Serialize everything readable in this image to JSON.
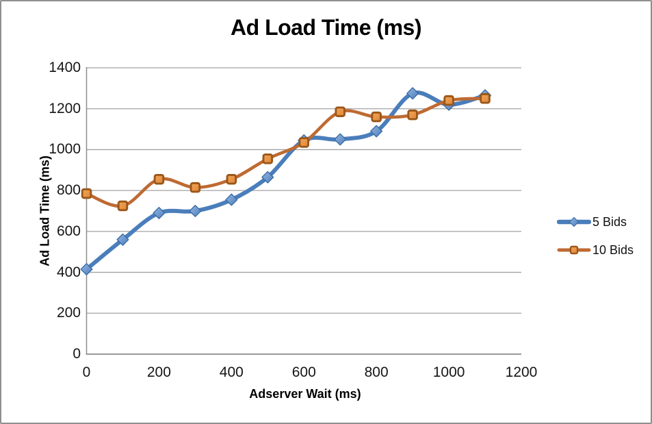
{
  "chart_data": {
    "type": "line",
    "title": "Ad Load Time (ms)",
    "xlabel": "Adserver Wait (ms)",
    "ylabel": "Ad Load Time (ms)",
    "x": [
      0,
      100,
      200,
      300,
      400,
      500,
      600,
      700,
      800,
      900,
      1000,
      1100
    ],
    "xticks": [
      0,
      200,
      400,
      600,
      800,
      1000,
      1200
    ],
    "yticks": [
      0,
      200,
      400,
      600,
      800,
      1000,
      1200,
      1400
    ],
    "xlim": [
      0,
      1200
    ],
    "ylim": [
      0,
      1400
    ],
    "grid": "horizontal-only",
    "smooth_lines": true,
    "legend_position": "right-middle",
    "colors": {
      "gridline": "#A2A2A2",
      "axis": "#8C8C8C",
      "text": "#000000",
      "background": "#FFFFFF",
      "border": "#8F8F8F"
    },
    "series": [
      {
        "name": "5 Bids",
        "marker": "diamond",
        "line_color": "#4A7EBB",
        "marker_fill_light": "#96B7E4",
        "marker_fill_dark": "#4D7EBB",
        "marker_stroke": "#3D6DA3",
        "values": [
          415,
          560,
          690,
          700,
          755,
          865,
          1045,
          1050,
          1090,
          1275,
          1220,
          1265
        ]
      },
      {
        "name": "10 Bids",
        "marker": "square",
        "line_color": "#BE6A33",
        "marker_fill_light": "#F2A558",
        "marker_fill_dark": "#E0863A",
        "marker_stroke": "#9A5719",
        "values": [
          785,
          725,
          855,
          815,
          855,
          955,
          1035,
          1185,
          1160,
          1170,
          1240,
          1250
        ]
      }
    ]
  }
}
